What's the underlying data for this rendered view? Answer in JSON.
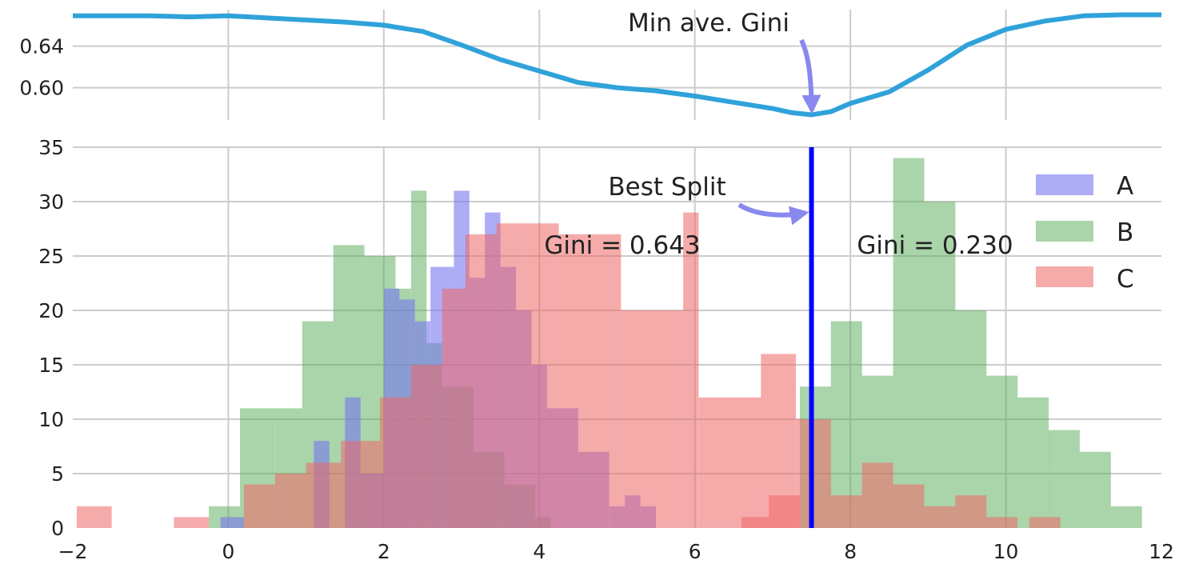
{
  "chart_data": [
    {
      "type": "line",
      "xlim": [
        -2,
        12
      ],
      "ylim": [
        0.569,
        0.675
      ],
      "yticks": [
        0.6,
        0.64
      ],
      "ytick_labels": [
        "0.60",
        "0.64"
      ],
      "grid": true,
      "color": "#30a2da",
      "series": [
        {
          "x": [
            -2,
            -1.5,
            -1,
            -0.5,
            0,
            0.5,
            1,
            1.5,
            2,
            2.5,
            3,
            3.5,
            4,
            4.5,
            5,
            5.5,
            6,
            6.5,
            7,
            7.25,
            7.5,
            7.75,
            8,
            8.5,
            9,
            9.5,
            10,
            10.5,
            11,
            11.5,
            12
          ],
          "y": [
            0.669,
            0.669,
            0.669,
            0.668,
            0.669,
            0.667,
            0.665,
            0.663,
            0.66,
            0.654,
            0.641,
            0.627,
            0.616,
            0.605,
            0.6,
            0.597,
            0.592,
            0.586,
            0.58,
            0.576,
            0.574,
            0.577,
            0.585,
            0.596,
            0.617,
            0.641,
            0.656,
            0.664,
            0.669,
            0.67,
            0.67
          ]
        }
      ],
      "annotation": {
        "text": "Min ave. Gini",
        "x": 7.5,
        "y": 0.574
      }
    },
    {
      "type": "bar",
      "xlim": [
        -2,
        12
      ],
      "ylim": [
        0,
        35
      ],
      "xticks": [
        -2,
        0,
        2,
        4,
        6,
        8,
        10,
        12
      ],
      "xtick_labels": [
        "−2",
        "0",
        "2",
        "4",
        "6",
        "8",
        "10",
        "12"
      ],
      "yticks": [
        0,
        5,
        10,
        15,
        20,
        25,
        30,
        35
      ],
      "ytick_labels": [
        "0",
        "5",
        "10",
        "15",
        "20",
        "25",
        "30",
        "35"
      ],
      "grid": true,
      "legend": "right",
      "series": [
        {
          "name": "A",
          "color": "#7777ee",
          "opacity": 0.6,
          "bins": [
            [
              -0.1,
              0.2,
              1
            ],
            [
              1.1,
              1.3,
              8
            ],
            [
              1.5,
              1.7,
              12
            ],
            [
              1.7,
              2.0,
              5
            ],
            [
              2.0,
              2.2,
              22
            ],
            [
              2.2,
              2.4,
              21
            ],
            [
              2.4,
              2.6,
              19
            ],
            [
              2.6,
              2.9,
              24
            ],
            [
              2.9,
              3.1,
              31
            ],
            [
              3.1,
              3.3,
              23
            ],
            [
              3.3,
              3.5,
              29
            ],
            [
              3.5,
              3.7,
              24
            ],
            [
              3.7,
              3.9,
              20
            ],
            [
              3.9,
              4.1,
              15
            ],
            [
              4.1,
              4.5,
              11
            ],
            [
              4.5,
              4.7,
              7
            ],
            [
              4.7,
              4.9,
              7
            ],
            [
              4.9,
              5.1,
              2
            ],
            [
              5.1,
              5.3,
              3
            ],
            [
              5.3,
              5.5,
              2
            ]
          ]
        },
        {
          "name": "B",
          "color": "#55aa55",
          "opacity": 0.5,
          "bins": [
            [
              -0.25,
              0.15,
              2
            ],
            [
              0.15,
              0.6,
              11
            ],
            [
              0.6,
              0.95,
              11
            ],
            [
              0.95,
              1.35,
              19
            ],
            [
              1.35,
              1.75,
              26
            ],
            [
              1.75,
              2.0,
              25
            ],
            [
              2.0,
              2.15,
              25
            ],
            [
              2.15,
              2.35,
              22
            ],
            [
              2.35,
              2.55,
              31
            ],
            [
              2.55,
              2.75,
              17
            ],
            [
              2.75,
              3.15,
              13
            ],
            [
              3.15,
              3.55,
              7
            ],
            [
              3.55,
              3.95,
              4
            ],
            [
              3.95,
              4.15,
              1
            ],
            [
              7.35,
              7.75,
              13
            ],
            [
              7.75,
              8.15,
              19
            ],
            [
              8.15,
              8.55,
              14
            ],
            [
              8.55,
              8.95,
              34
            ],
            [
              8.95,
              9.35,
              30
            ],
            [
              9.35,
              9.75,
              20
            ],
            [
              9.75,
              10.15,
              14
            ],
            [
              10.15,
              10.55,
              12
            ],
            [
              10.55,
              10.95,
              9
            ],
            [
              10.95,
              11.35,
              7
            ],
            [
              11.35,
              11.75,
              2
            ]
          ]
        },
        {
          "name": "C",
          "color": "#ee6666",
          "opacity": 0.55,
          "bins": [
            [
              -1.95,
              -1.5,
              2
            ],
            [
              -0.7,
              -0.25,
              1
            ],
            [
              0.2,
              0.6,
              4
            ],
            [
              0.6,
              1.0,
              5
            ],
            [
              1.0,
              1.45,
              6
            ],
            [
              1.45,
              1.95,
              8
            ],
            [
              1.95,
              2.35,
              12
            ],
            [
              2.35,
              2.75,
              15
            ],
            [
              2.75,
              3.05,
              22
            ],
            [
              3.05,
              3.45,
              27
            ],
            [
              3.45,
              3.85,
              28
            ],
            [
              3.85,
              4.25,
              28
            ],
            [
              4.25,
              4.65,
              27
            ],
            [
              4.65,
              5.05,
              27
            ],
            [
              5.05,
              5.45,
              20
            ],
            [
              5.45,
              5.85,
              20
            ],
            [
              5.85,
              6.05,
              29
            ],
            [
              6.05,
              6.45,
              12
            ],
            [
              6.45,
              6.85,
              12
            ],
            [
              6.85,
              7.3,
              16
            ],
            [
              7.3,
              7.5,
              10
            ],
            [
              6.6,
              6.95,
              1
            ],
            [
              6.95,
              7.35,
              3
            ],
            [
              7.5,
              7.75,
              10
            ],
            [
              7.75,
              8.15,
              3
            ],
            [
              8.15,
              8.55,
              6
            ],
            [
              8.55,
              8.95,
              4
            ],
            [
              8.95,
              9.35,
              2
            ],
            [
              9.35,
              9.75,
              3
            ],
            [
              9.75,
              10.15,
              1
            ],
            [
              10.3,
              10.7,
              1
            ]
          ]
        }
      ],
      "split_line": {
        "x": 7.5,
        "color": "#0000ff"
      },
      "annotations": [
        {
          "text": "Best Split"
        },
        {
          "text": "Gini = 0.643"
        },
        {
          "text": "Gini = 0.230"
        }
      ]
    }
  ]
}
